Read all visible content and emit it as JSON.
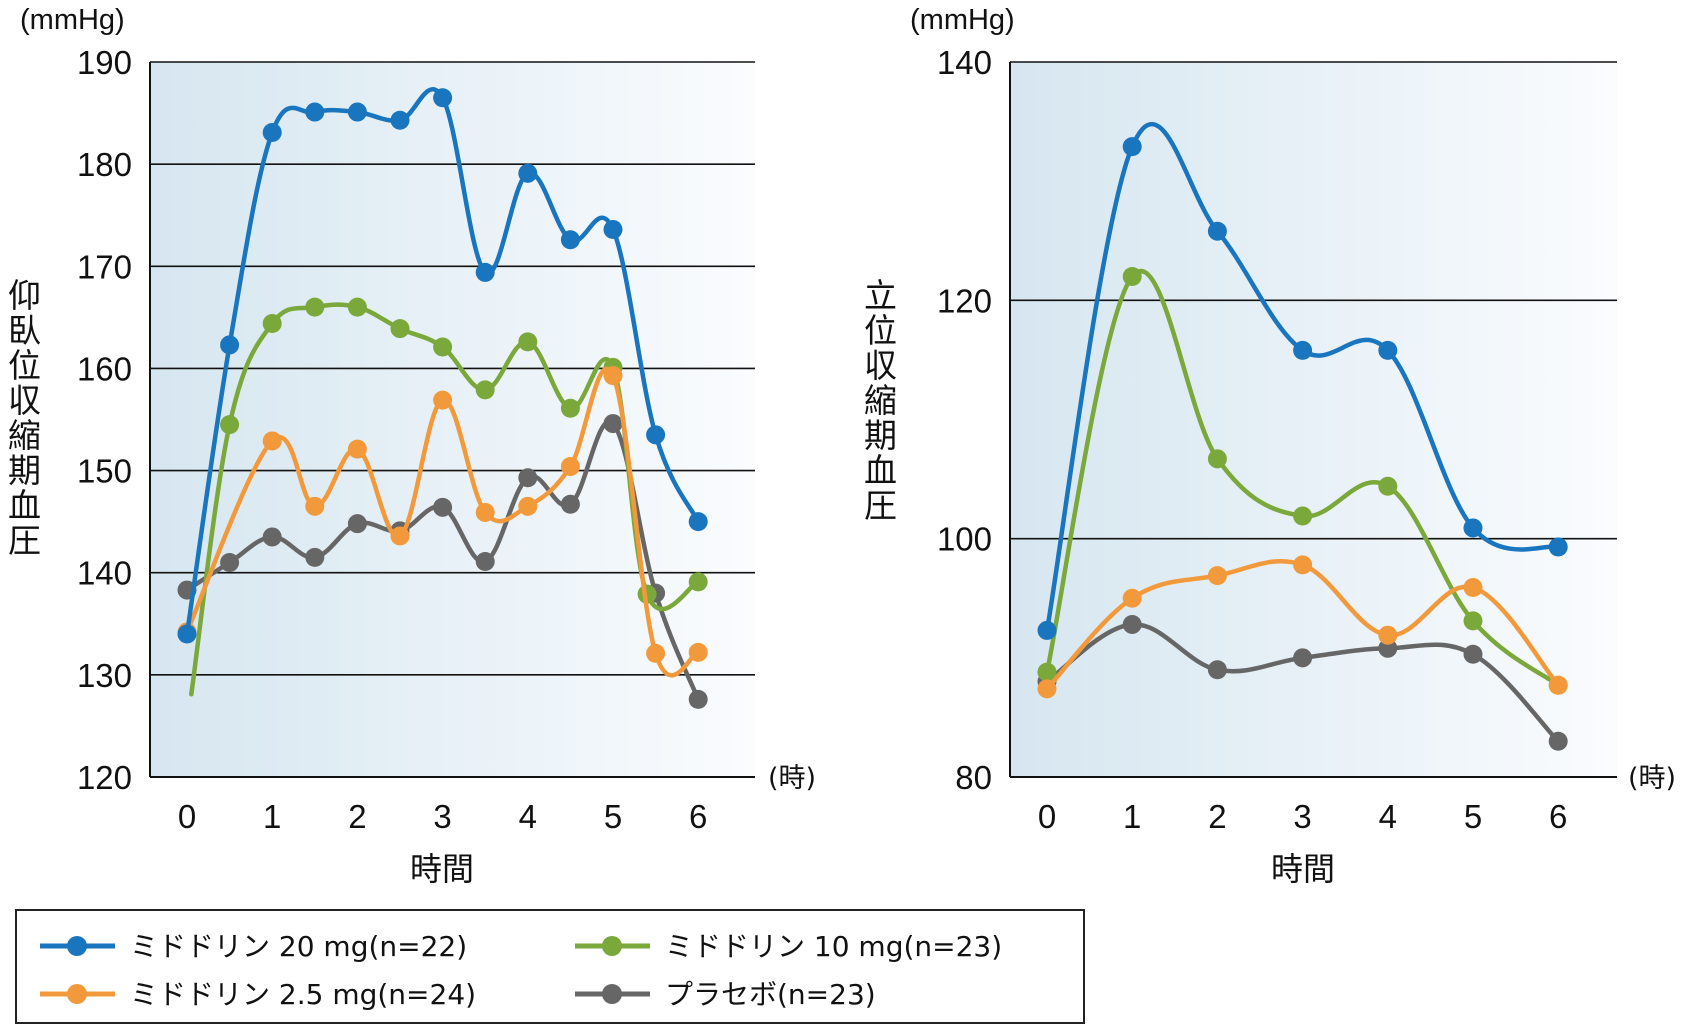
{
  "chart_data": [
    {
      "type": "line",
      "id": "supine",
      "title": "",
      "ylabel": "仰臥位収縮期血圧",
      "yunit": "(mmHg)",
      "xlabel": "時間",
      "xunit": "(時)",
      "ylim": [
        120,
        190
      ],
      "yticks": [
        120,
        130,
        140,
        150,
        160,
        170,
        180,
        190
      ],
      "xlim": [
        -0.5,
        6.5
      ],
      "xticks": [
        0,
        1,
        2,
        3,
        4,
        5,
        6
      ],
      "grid": true,
      "series": [
        {
          "name": "ミドドリン 20 mg(n=22)",
          "key": "m20",
          "points": [
            [
              0,
              134.0
            ],
            [
              0.5,
              162.3
            ],
            [
              1,
              183.1
            ],
            [
              1.5,
              185.1
            ],
            [
              2,
              185.1
            ],
            [
              2.5,
              184.3
            ],
            [
              3,
              186.5
            ],
            [
              3.5,
              169.4
            ],
            [
              4,
              179.1
            ],
            [
              4.5,
              172.6
            ],
            [
              5,
              173.6
            ],
            [
              5.5,
              153.5
            ],
            [
              6,
              145.0
            ]
          ]
        },
        {
          "name": "ミドドリン 10 mg(n=23)",
          "key": "m10",
          "points": [
            [
              0.05,
              128.1
            ],
            [
              0.5,
              154.5
            ],
            [
              1,
              164.4
            ],
            [
              1.5,
              166.0
            ],
            [
              2,
              166.0
            ],
            [
              2.5,
              163.9
            ],
            [
              3,
              162.1
            ],
            [
              3.5,
              157.9
            ],
            [
              4,
              162.6
            ],
            [
              4.5,
              156.1
            ],
            [
              5,
              160.1
            ],
            [
              5.4,
              137.9
            ],
            [
              6,
              139.1
            ]
          ]
        },
        {
          "name": "ミドドリン 2.5 mg(n=24)",
          "key": "m25",
          "points": [
            [
              0,
              134.2
            ],
            [
              1,
              152.9
            ],
            [
              1.5,
              146.5
            ],
            [
              2,
              152.1
            ],
            [
              2.5,
              143.6
            ],
            [
              3,
              156.9
            ],
            [
              3.5,
              145.9
            ],
            [
              4,
              146.5
            ],
            [
              4.5,
              150.4
            ],
            [
              5,
              159.3
            ],
            [
              5.5,
              132.1
            ],
            [
              6,
              132.2
            ]
          ]
        },
        {
          "name": "プラセボ(n=23)",
          "key": "pl",
          "points": [
            [
              0,
              138.3
            ],
            [
              0.5,
              141.0
            ],
            [
              1,
              143.5
            ],
            [
              1.5,
              141.5
            ],
            [
              2,
              144.8
            ],
            [
              2.5,
              144.1
            ],
            [
              3,
              146.4
            ],
            [
              3.5,
              141.1
            ],
            [
              4,
              149.3
            ],
            [
              4.5,
              146.7
            ],
            [
              5,
              154.6
            ],
            [
              5.5,
              138.0
            ],
            [
              6,
              127.6
            ]
          ]
        }
      ]
    },
    {
      "type": "line",
      "id": "standing",
      "title": "",
      "ylabel": "立位収縮期血圧",
      "yunit": "(mmHg)",
      "xlabel": "時間",
      "xunit": "(時)",
      "ylim": [
        80,
        140
      ],
      "yticks": [
        80,
        100,
        120,
        140
      ],
      "xlim": [
        -0.5,
        6.5
      ],
      "xticks": [
        0,
        1,
        2,
        3,
        4,
        5,
        6
      ],
      "grid": true,
      "series": [
        {
          "name": "ミドドリン 20 mg(n=22)",
          "key": "m20",
          "points": [
            [
              0,
              92.3
            ],
            [
              1,
              132.9
            ],
            [
              2,
              125.8
            ],
            [
              3,
              115.8
            ],
            [
              4,
              115.8
            ],
            [
              5,
              100.9
            ],
            [
              6,
              99.3
            ]
          ]
        },
        {
          "name": "ミドドリン 10 mg(n=23)",
          "key": "m10",
          "points": [
            [
              0,
              88.8
            ],
            [
              1,
              122.0
            ],
            [
              2,
              106.7
            ],
            [
              3,
              101.9
            ],
            [
              4,
              104.4
            ],
            [
              5,
              93.1
            ],
            [
              6,
              87.7
            ]
          ]
        },
        {
          "name": "ミドドリン 2.5 mg(n=24)",
          "key": "m25",
          "points": [
            [
              0,
              87.4
            ],
            [
              1,
              95.0
            ],
            [
              2,
              96.9
            ],
            [
              3,
              97.8
            ],
            [
              4,
              91.9
            ],
            [
              5,
              95.9
            ],
            [
              6,
              87.7
            ]
          ]
        },
        {
          "name": "プラセボ(n=23)",
          "key": "pl",
          "points": [
            [
              0,
              88.0
            ],
            [
              1,
              92.8
            ],
            [
              2,
              89.0
            ],
            [
              3,
              90.0
            ],
            [
              4,
              90.8
            ],
            [
              5,
              90.3
            ],
            [
              6,
              83.0
            ]
          ]
        }
      ]
    }
  ],
  "legend": {
    "position": "bottom-left",
    "items": [
      {
        "label": "ミドドリン 20 mg(n=22)",
        "key": "m20"
      },
      {
        "label": "ミドドリン 10 mg(n=23)",
        "key": "m10"
      },
      {
        "label": "ミドドリン 2.5 mg(n=24)",
        "key": "m25"
      },
      {
        "label": "プラセボ(n=23)",
        "key": "pl"
      }
    ]
  },
  "colors": {
    "m20": "#1a75bf",
    "m10": "#7aa83a",
    "m25": "#f29a3b",
    "pl": "#666666",
    "plot_bg_left": "#d6e6f0",
    "plot_bg_right": "#fafcfe",
    "axis": "#111111"
  }
}
